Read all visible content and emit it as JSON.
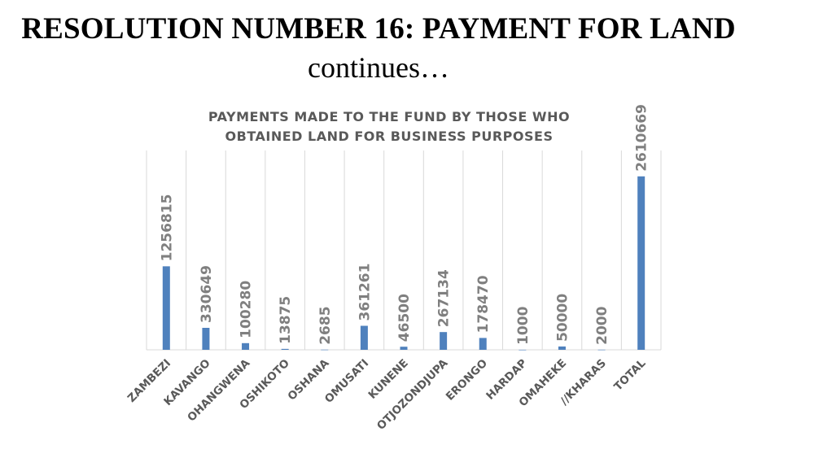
{
  "slide": {
    "title": "RESOLUTION NUMBER 16: PAYMENT FOR LAND",
    "subtitle": "continues…"
  },
  "chart_data": {
    "type": "bar",
    "title_lines": [
      "PAYMENTS MADE TO THE FUND BY THOSE WHO",
      "OBTAINED LAND FOR BUSINESS PURPOSES"
    ],
    "categories": [
      "ZAMBEZI",
      "KAVANGO",
      "OHANGWENA",
      "OSHIKOTO",
      "OSHANA",
      "OMUSATI",
      "KUNENE",
      "OTJOZONDJUPA",
      "ERONGO",
      "HARDAP",
      "OMAHEKE",
      "//KHARAS",
      "TOTAL"
    ],
    "values": [
      1256815,
      330649,
      100280,
      13875,
      2685,
      361261,
      46500,
      267134,
      178470,
      1000,
      50000,
      2000,
      2610669
    ],
    "data_labels": [
      "1256815",
      "330649",
      "100280",
      "13875",
      "2685",
      "361261",
      "46500",
      "267134",
      "178470",
      "1000",
      "50000",
      "2000",
      "2610669"
    ],
    "xlabel": "",
    "ylabel": "",
    "ylim": [
      0,
      3000000
    ],
    "grid": "vertical category gridlines",
    "legend": "none",
    "bar_color": "#4F81BD",
    "grid_color": "#d9d9d9"
  }
}
